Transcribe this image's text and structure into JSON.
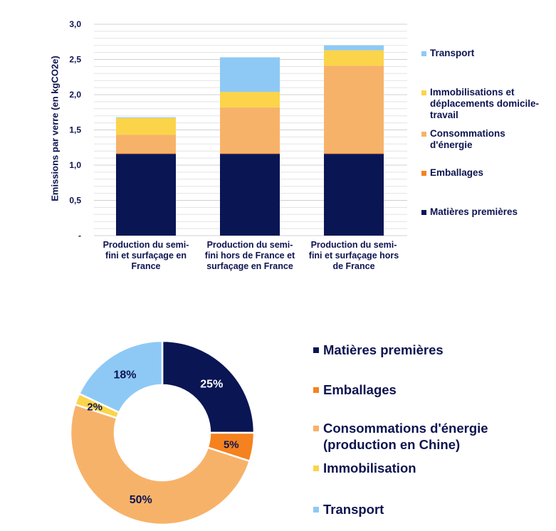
{
  "chart_data": [
    {
      "type": "bar",
      "stacked": true,
      "ylabel": "Emissions par verre (en kgCO2e)",
      "ylim": [
        0,
        3.0
      ],
      "yticks": [
        "-",
        "0,5",
        "1,0",
        "1,5",
        "2,0",
        "2,5",
        "3,0"
      ],
      "grid": true,
      "legend_position": "right",
      "categories": [
        "Production du semi-fini et surfaçage en France",
        "Production du semi-fini hors de France et surfaçage en France",
        "Production du semi-fini et surfaçage hors de France"
      ],
      "category_lines": [
        [
          "Production du semi-",
          "fini et surfaçage en",
          "France"
        ],
        [
          "Production du semi-",
          "fini hors de France et",
          "surfaçage en France"
        ],
        [
          "Production du semi-",
          "fini et surfaçage hors",
          "de France"
        ]
      ],
      "series": [
        {
          "name": "Matières premières",
          "color": "#0a1554",
          "values": [
            1.16,
            1.16,
            1.16
          ]
        },
        {
          "name": "Emballages",
          "color": "#f5821f",
          "values": [
            0.01,
            0.01,
            0.01
          ]
        },
        {
          "name": "Consommations d'énergie",
          "color": "#f7b26a",
          "values": [
            0.26,
            0.65,
            1.24
          ]
        },
        {
          "name": "Immobilisations et déplacements domicile-travail",
          "color": "#fbd44a",
          "values": [
            0.24,
            0.22,
            0.22
          ]
        },
        {
          "name": "Transport",
          "color": "#8ec9f5",
          "values": [
            0.01,
            0.49,
            0.07
          ]
        }
      ],
      "legend_lines": {
        "Transport": [
          "Transport"
        ],
        "Immobilisations et déplacements domicile-travail": [
          "Immobilisations et",
          "déplacements domicile-",
          "travail"
        ],
        "Consommations d'énergie": [
          "Consommations",
          "d'énergie"
        ],
        "Emballages": [
          "Emballages"
        ],
        "Matières premières": [
          "Matières premières"
        ]
      }
    },
    {
      "type": "pie",
      "donut": true,
      "legend_position": "right",
      "slices": [
        {
          "label": "Matières premières",
          "value": 25,
          "display": "25%",
          "color": "#0a1554"
        },
        {
          "label": "Emballages",
          "value": 5,
          "display": "5%",
          "color": "#f5821f"
        },
        {
          "label": "Consommations d'énergie (production en Chine)",
          "value": 50,
          "display": "50%",
          "color": "#f7b26a"
        },
        {
          "label": "Immobilisation",
          "value": 2,
          "display": "2%",
          "color": "#fbd44a"
        },
        {
          "label": "Transport",
          "value": 18,
          "display": "18%",
          "color": "#8ec9f5"
        }
      ],
      "legend_lines": {
        "Matières premières": [
          "Matières premières"
        ],
        "Emballages": [
          "Emballages"
        ],
        "Consommations d'énergie (production en Chine)": [
          "Consommations d'énergie",
          "(production en Chine)"
        ],
        "Immobilisation": [
          "Immobilisation"
        ],
        "Transport": [
          "Transport"
        ]
      }
    }
  ]
}
